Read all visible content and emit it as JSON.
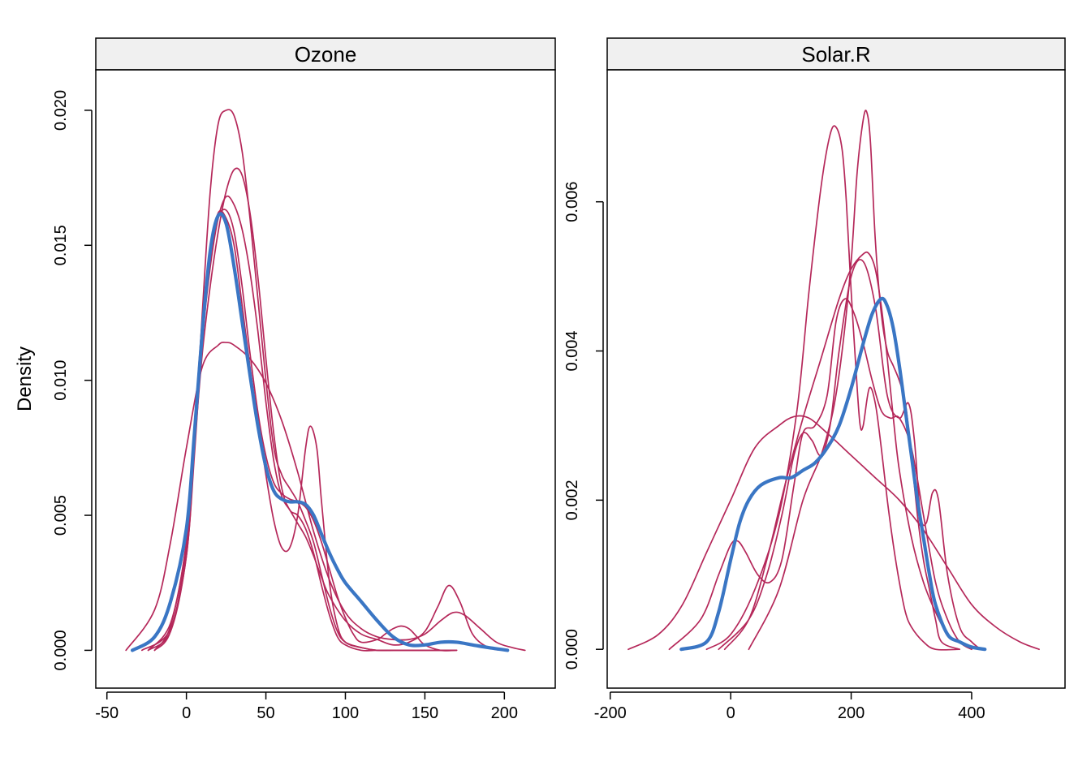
{
  "colors": {
    "observed": "#3a76c4",
    "imputed": "#b5285a",
    "strip_bg": "#f0f0f0"
  },
  "chart_data": [
    {
      "type": "line",
      "panel_title": "Ozone",
      "ylabel": "Density",
      "xlabel": "",
      "xlim": [
        -57,
        232
      ],
      "ylim": [
        -0.0014,
        0.0215
      ],
      "xticks": [
        "-50",
        "0",
        "50",
        "100",
        "150",
        "200"
      ],
      "xtick_values": [
        -50,
        0,
        50,
        100,
        150,
        200
      ],
      "yticks": [
        "0.000",
        "0.005",
        "0.010",
        "0.015",
        "0.020"
      ],
      "ytick_values": [
        0,
        0.005,
        0.01,
        0.015,
        0.02
      ],
      "series": [
        {
          "role": "observed",
          "x": [
            -34,
            -20,
            -10,
            0,
            5,
            10,
            15,
            20,
            25,
            30,
            35,
            40,
            45,
            50,
            55,
            60,
            65,
            70,
            75,
            80,
            85,
            90,
            95,
            100,
            110,
            120,
            130,
            140,
            150,
            160,
            170,
            180,
            190,
            202
          ],
          "y": [
            0,
            0.0005,
            0.0018,
            0.0045,
            0.008,
            0.0118,
            0.0148,
            0.0161,
            0.0158,
            0.0142,
            0.0122,
            0.0102,
            0.0083,
            0.0068,
            0.0059,
            0.0056,
            0.0055,
            0.0055,
            0.0054,
            0.005,
            0.0043,
            0.0036,
            0.003,
            0.0025,
            0.0018,
            0.0011,
            0.0005,
            0.0002,
            0.0002,
            0.0003,
            0.0003,
            0.0002,
            0.0001,
            0
          ]
        },
        {
          "role": "imputed",
          "x": [
            -20,
            -10,
            0,
            5,
            10,
            15,
            20,
            25,
            30,
            35,
            40,
            45,
            50,
            55,
            60,
            65,
            70,
            75,
            80,
            85,
            90,
            95,
            100,
            110,
            120,
            130,
            140,
            150,
            160,
            167
          ],
          "y": [
            0,
            0.0007,
            0.0035,
            0.0075,
            0.0125,
            0.017,
            0.0195,
            0.02,
            0.0198,
            0.0185,
            0.016,
            0.013,
            0.01,
            0.0075,
            0.0065,
            0.006,
            0.0055,
            0.0048,
            0.004,
            0.0028,
            0.0016,
            0.0007,
            0.0003,
            0.0001,
            0,
            0,
            0,
            0,
            0,
            0
          ]
        },
        {
          "role": "imputed",
          "x": [
            -24,
            -10,
            0,
            5,
            10,
            15,
            20,
            25,
            30,
            35,
            40,
            45,
            50,
            55,
            60,
            65,
            70,
            75,
            80,
            85,
            90,
            95,
            100,
            110,
            120,
            130,
            140,
            150,
            160,
            170
          ],
          "y": [
            0,
            0.001,
            0.004,
            0.0075,
            0.011,
            0.0135,
            0.0155,
            0.017,
            0.0178,
            0.0176,
            0.0162,
            0.0138,
            0.0108,
            0.008,
            0.006,
            0.0052,
            0.005,
            0.0045,
            0.0036,
            0.0024,
            0.0013,
            0.0005,
            0.0002,
            0,
            0,
            0,
            0,
            0,
            0,
            0
          ]
        },
        {
          "role": "imputed",
          "x": [
            -28,
            -10,
            0,
            5,
            10,
            15,
            20,
            25,
            30,
            35,
            40,
            45,
            50,
            55,
            60,
            65,
            70,
            75,
            80,
            85,
            90,
            100,
            110,
            120,
            130,
            140,
            150,
            158,
            165,
            172,
            180,
            190,
            200
          ],
          "y": [
            0,
            0.0008,
            0.0038,
            0.0075,
            0.0115,
            0.0142,
            0.016,
            0.0168,
            0.0165,
            0.0156,
            0.014,
            0.0118,
            0.0092,
            0.007,
            0.0057,
            0.0052,
            0.0047,
            0.0042,
            0.0035,
            0.0027,
            0.002,
            0.0011,
            0.0006,
            0.0004,
            0.0002,
            0.0003,
            0.0007,
            0.0016,
            0.0024,
            0.0018,
            0.0006,
            0.0001,
            0
          ]
        },
        {
          "role": "imputed",
          "x": [
            -20,
            -10,
            0,
            5,
            10,
            15,
            20,
            25,
            30,
            35,
            40,
            45,
            50,
            55,
            60,
            65,
            70,
            75,
            78,
            82,
            85,
            90,
            95,
            100,
            110,
            120,
            130,
            140,
            150,
            160,
            168
          ],
          "y": [
            0,
            0.0009,
            0.004,
            0.0082,
            0.0122,
            0.0148,
            0.0162,
            0.016,
            0.015,
            0.0128,
            0.0105,
            0.0085,
            0.0065,
            0.0048,
            0.0038,
            0.0038,
            0.005,
            0.0075,
            0.0083,
            0.0075,
            0.0055,
            0.0025,
            0.0009,
            0.0003,
            0.0001,
            0,
            0,
            0,
            0,
            0,
            0
          ]
        },
        {
          "role": "imputed",
          "x": [
            -38,
            -20,
            -10,
            0,
            10,
            20,
            25,
            30,
            40,
            50,
            60,
            70,
            80,
            90,
            100,
            110,
            120,
            130,
            140,
            150,
            160,
            168,
            175,
            185,
            195,
            205,
            213
          ],
          "y": [
            0,
            0.0015,
            0.004,
            0.0075,
            0.0105,
            0.0113,
            0.0114,
            0.0113,
            0.0108,
            0.0099,
            0.0085,
            0.0066,
            0.0044,
            0.0026,
            0.0014,
            0.0008,
            0.0005,
            0.0004,
            0.0004,
            0.0006,
            0.0011,
            0.0014,
            0.0013,
            0.0008,
            0.0003,
            0.0001,
            0
          ]
        },
        {
          "role": "imputed",
          "x": [
            -24,
            -10,
            0,
            5,
            10,
            15,
            20,
            25,
            30,
            35,
            40,
            45,
            50,
            55,
            60,
            65,
            70,
            75,
            80,
            85,
            90,
            95,
            100,
            105,
            110,
            120,
            125,
            130,
            135,
            140,
            145,
            150,
            160,
            170
          ],
          "y": [
            0,
            0.0007,
            0.0035,
            0.0072,
            0.0115,
            0.0145,
            0.016,
            0.0163,
            0.0155,
            0.0135,
            0.011,
            0.0088,
            0.0072,
            0.0062,
            0.0058,
            0.0056,
            0.0055,
            0.0053,
            0.0048,
            0.004,
            0.003,
            0.002,
            0.0012,
            0.0006,
            0.0003,
            0.0004,
            0.0006,
            0.0008,
            0.0009,
            0.0008,
            0.0005,
            0.0002,
            0,
            0
          ]
        }
      ]
    },
    {
      "type": "line",
      "panel_title": "Solar.R",
      "ylabel": "",
      "xlabel": "",
      "xlim": [
        -205,
        555
      ],
      "ylim": [
        -0.00052,
        0.00777
      ],
      "xticks": [
        "-200",
        "0",
        "200",
        "400"
      ],
      "xtick_values": [
        -200,
        0,
        200,
        400
      ],
      "yticks": [
        "0.000",
        "0.002",
        "0.004",
        "0.006"
      ],
      "ytick_values": [
        0,
        0.002,
        0.004,
        0.006
      ],
      "series": [
        {
          "role": "observed",
          "x": [
            -82,
            -40,
            -20,
            0,
            15,
            30,
            50,
            80,
            100,
            120,
            140,
            160,
            180,
            200,
            220,
            235,
            250,
            260,
            270,
            280,
            290,
            300,
            310,
            320,
            330,
            340,
            360,
            380,
            400,
            422
          ],
          "y": [
            0,
            0.0001,
            0.0005,
            0.0012,
            0.0017,
            0.002,
            0.0022,
            0.0023,
            0.0023,
            0.0024,
            0.0025,
            0.0027,
            0.003,
            0.0035,
            0.0041,
            0.0045,
            0.0047,
            0.0046,
            0.0043,
            0.0038,
            0.0032,
            0.0026,
            0.002,
            0.0015,
            0.001,
            0.0006,
            0.0002,
            0.0001,
            3e-05,
            0
          ]
        },
        {
          "role": "imputed",
          "x": [
            -40,
            0,
            40,
            80,
            110,
            130,
            150,
            165,
            175,
            185,
            192,
            200,
            210,
            215,
            220,
            230,
            240,
            250,
            260,
            270,
            280,
            290,
            300,
            320,
            340,
            380
          ],
          "y": [
            0,
            0.0002,
            0.0008,
            0.0018,
            0.0032,
            0.0048,
            0.0062,
            0.0069,
            0.007,
            0.0067,
            0.006,
            0.0048,
            0.0035,
            0.003,
            0.003,
            0.0035,
            0.0033,
            0.0027,
            0.002,
            0.0014,
            0.0009,
            0.0005,
            0.0003,
            0.0001,
            0,
            0
          ]
        },
        {
          "role": "imputed",
          "x": [
            30,
            80,
            120,
            150,
            170,
            185,
            200,
            210,
            220,
            226,
            232,
            240,
            250,
            260,
            270,
            280,
            290,
            300,
            310,
            320,
            330,
            340,
            350,
            380
          ],
          "y": [
            0,
            0.0008,
            0.002,
            0.0026,
            0.0032,
            0.004,
            0.0052,
            0.0064,
            0.0071,
            0.0072,
            0.0068,
            0.0055,
            0.0045,
            0.004,
            0.0038,
            0.0036,
            0.0033,
            0.0026,
            0.0018,
            0.0012,
            0.0008,
            0.0004,
            0.0001,
            0
          ]
        },
        {
          "role": "imputed",
          "x": [
            -10,
            30,
            60,
            90,
            120,
            150,
            180,
            200,
            220,
            230,
            240,
            250,
            260,
            270,
            280,
            300,
            320,
            340,
            360,
            380,
            400
          ],
          "y": [
            0,
            0.0004,
            0.0012,
            0.0022,
            0.0031,
            0.0039,
            0.0047,
            0.0051,
            0.0053,
            0.0053,
            0.0051,
            0.0046,
            0.0039,
            0.0031,
            0.0024,
            0.0015,
            0.0009,
            0.0005,
            0.0002,
            0.0001,
            0
          ]
        },
        {
          "role": "imputed",
          "x": [
            -102,
            -50,
            -20,
            0,
            12,
            25,
            45,
            65,
            85,
            105,
            120,
            140,
            160,
            175,
            190,
            205,
            220,
            235,
            250,
            265,
            280,
            300,
            320,
            340,
            360,
            380,
            400
          ],
          "y": [
            0,
            0.0004,
            0.001,
            0.0014,
            0.00145,
            0.0013,
            0.001,
            0.0009,
            0.0012,
            0.0022,
            0.0029,
            0.003,
            0.0034,
            0.0044,
            0.0047,
            0.0045,
            0.0041,
            0.0036,
            0.0032,
            0.0031,
            0.0031,
            0.0027,
            0.0018,
            0.0009,
            0.0004,
            0.0001,
            0
          ]
        },
        {
          "role": "imputed",
          "x": [
            -170,
            -120,
            -80,
            -40,
            0,
            40,
            80,
            105,
            130,
            160,
            200,
            240,
            280,
            320,
            360,
            400,
            440,
            480,
            512
          ],
          "y": [
            0,
            0.0002,
            0.0006,
            0.0013,
            0.002,
            0.0027,
            0.003,
            0.00312,
            0.0031,
            0.0029,
            0.0026,
            0.0023,
            0.002,
            0.0016,
            0.0011,
            0.0006,
            0.0003,
            0.0001,
            0
          ]
        },
        {
          "role": "imputed",
          "x": [
            -20,
            30,
            60,
            85,
            105,
            120,
            135,
            150,
            165,
            180,
            200,
            220,
            240,
            260,
            280,
            295,
            305,
            315,
            325,
            335,
            345,
            360,
            380,
            400,
            415
          ],
          "y": [
            0,
            0.0004,
            0.001,
            0.0018,
            0.0026,
            0.0029,
            0.0028,
            0.0026,
            0.003,
            0.004,
            0.005,
            0.0052,
            0.0046,
            0.0034,
            0.0031,
            0.0033,
            0.0028,
            0.0018,
            0.0017,
            0.0021,
            0.002,
            0.001,
            0.0003,
            0.0001,
            0
          ]
        }
      ]
    }
  ]
}
